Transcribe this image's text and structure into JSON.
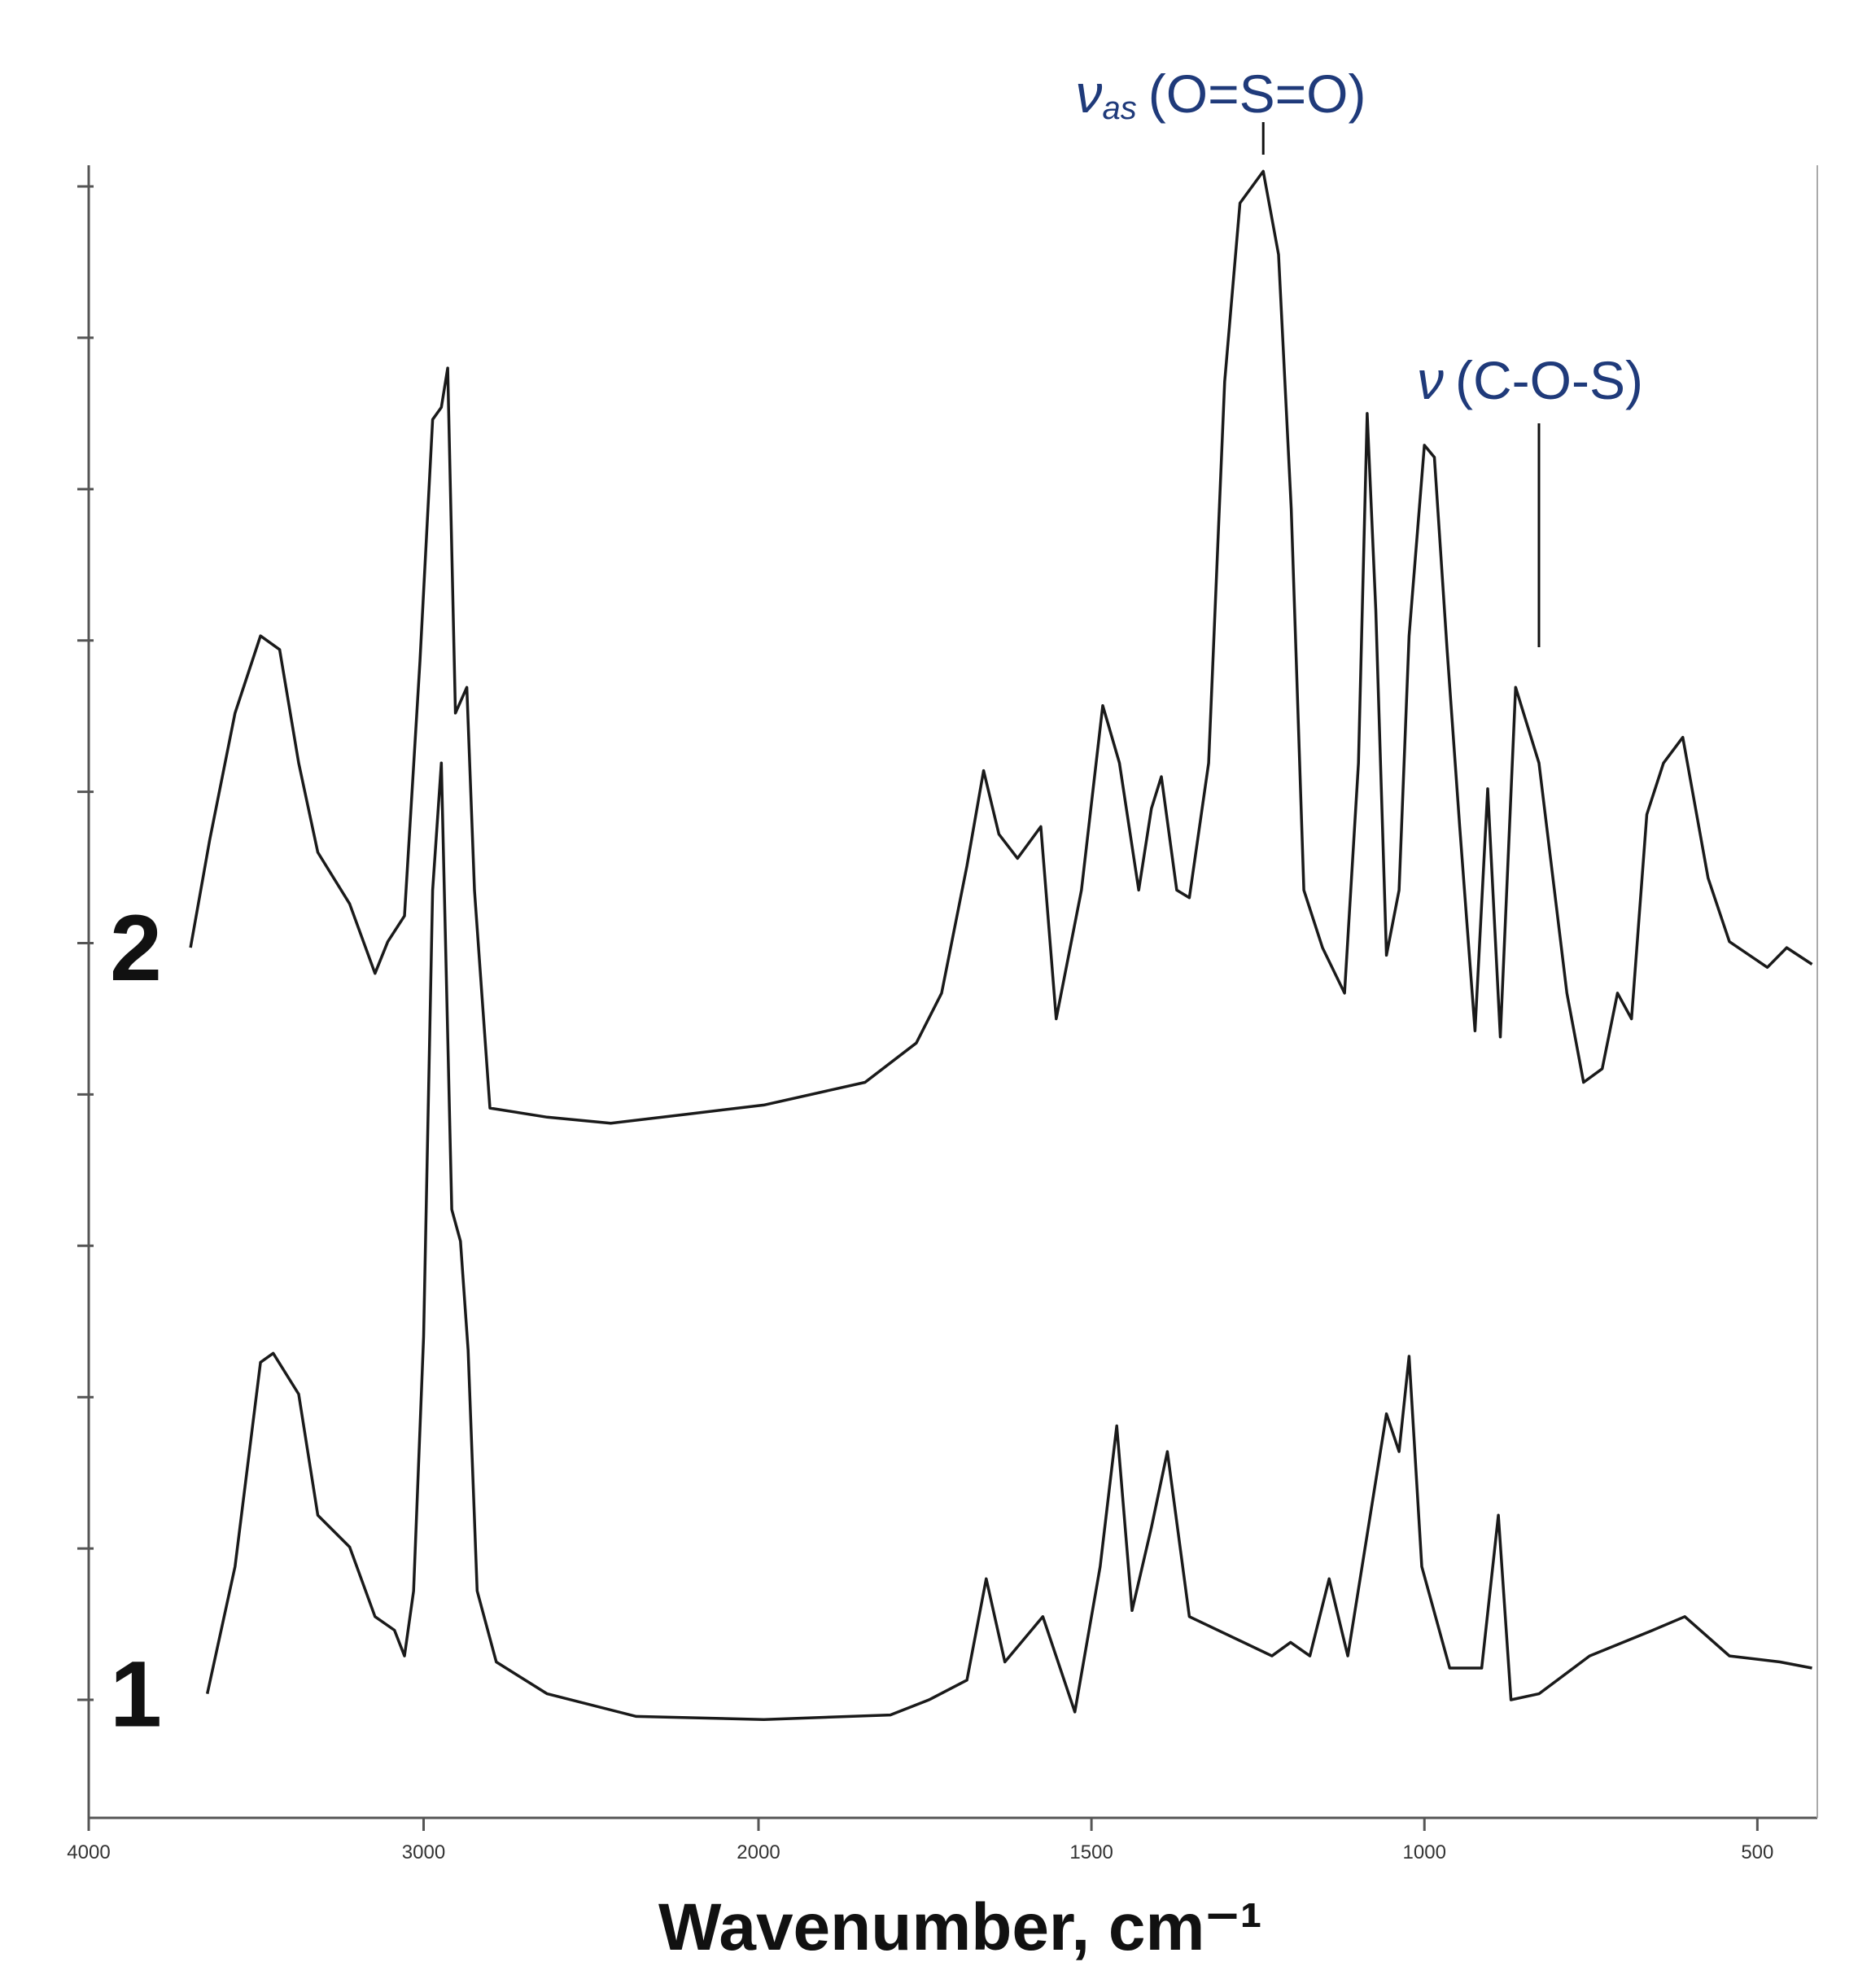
{
  "chart_data": {
    "type": "line",
    "x_label": "Wavenumber, cm⁻¹",
    "xlim": [
      4000,
      410
    ],
    "x_scale_break": 2000,
    "xticks": [
      4000,
      3000,
      2000,
      1500,
      1000,
      500
    ],
    "ylim": [
      -0.78,
      10.14
    ],
    "yticks": [
      0,
      1,
      2,
      3,
      4,
      5,
      6,
      7,
      8,
      9,
      10
    ],
    "series": [
      {
        "name": "1",
        "color": "#1a1a1a",
        "x": [
          3646,
          3563,
          3487,
          3449,
          3373,
          3316,
          3221,
          3145,
          3087,
          3057,
          3030,
          3000,
          2973,
          2947,
          2916,
          2890,
          2867,
          2840,
          2783,
          2631,
          2365,
          1992,
          1802,
          1744,
          1687,
          1658,
          1630,
          1573,
          1525,
          1487,
          1462,
          1439,
          1410,
          1386,
          1353,
          1229,
          1201,
          1172,
          1143,
          1115,
          1057,
          1038,
          1023,
          1004,
          962,
          914,
          889,
          870,
          828,
          752,
          657,
          609,
          542,
          466,
          418
        ],
        "values": [
          0.04,
          0.88,
          2.23,
          2.29,
          2.02,
          1.22,
          1.01,
          0.55,
          0.46,
          0.29,
          0.72,
          2.4,
          5.35,
          6.19,
          3.24,
          3.03,
          2.31,
          0.72,
          0.25,
          0.04,
          -0.11,
          -0.13,
          -0.1,
          0,
          0.13,
          0.8,
          0.25,
          0.55,
          -0.08,
          0.88,
          1.81,
          0.59,
          1.14,
          1.64,
          0.55,
          0.29,
          0.38,
          0.29,
          0.8,
          0.29,
          1.89,
          1.64,
          2.27,
          0.88,
          0.21,
          0.21,
          1.22,
          0,
          0.04,
          0.29,
          0.46,
          0.55,
          0.29,
          0.25,
          0.21
        ]
      },
      {
        "name": "2",
        "color": "#1a1a1a",
        "x": [
          3696,
          3639,
          3563,
          3487,
          3430,
          3373,
          3316,
          3221,
          3145,
          3107,
          3057,
          3011,
          2973,
          2947,
          2928,
          2905,
          2871,
          2848,
          2802,
          2631,
          2441,
          2213,
          1992,
          1840,
          1763,
          1725,
          1687,
          1662,
          1639,
          1611,
          1576,
          1553,
          1515,
          1483,
          1458,
          1429,
          1410,
          1395,
          1372,
          1353,
          1324,
          1300,
          1277,
          1242,
          1219,
          1200,
          1181,
          1153,
          1120,
          1099,
          1086,
          1073,
          1057,
          1038,
          1023,
          1000,
          985,
          966,
          947,
          924,
          905,
          886,
          863,
          828,
          786,
          761,
          733,
          710,
          689,
          666,
          641,
          612,
          574,
          542,
          485,
          456,
          418
        ],
        "values": [
          4.97,
          5.68,
          6.52,
          7.03,
          6.94,
          6.19,
          5.6,
          5.26,
          4.8,
          5.01,
          5.18,
          6.86,
          8.46,
          8.54,
          8.8,
          6.52,
          6.69,
          5.35,
          3.91,
          3.85,
          3.81,
          3.87,
          3.93,
          4.08,
          4.34,
          4.67,
          5.51,
          6.14,
          5.72,
          5.56,
          5.77,
          4.5,
          5.35,
          6.57,
          6.19,
          5.35,
          5.89,
          6.1,
          5.35,
          5.3,
          6.19,
          8.71,
          9.89,
          10.1,
          9.55,
          7.87,
          5.35,
          4.97,
          4.67,
          6.19,
          8.5,
          7.2,
          4.92,
          5.35,
          7.03,
          8.29,
          8.21,
          6.94,
          5.77,
          4.42,
          6.02,
          4.38,
          6.69,
          6.19,
          4.67,
          4.08,
          4.17,
          4.67,
          4.5,
          5.85,
          6.19,
          6.36,
          5.43,
          5.01,
          4.84,
          4.97,
          4.86
        ]
      }
    ],
    "annotations": [
      {
        "symbol": "ν",
        "subscript": "as",
        "text": "(O=S=O)",
        "x": 1242
      },
      {
        "symbol": "ν",
        "text": "(C-O-S)",
        "x": 828
      }
    ]
  }
}
